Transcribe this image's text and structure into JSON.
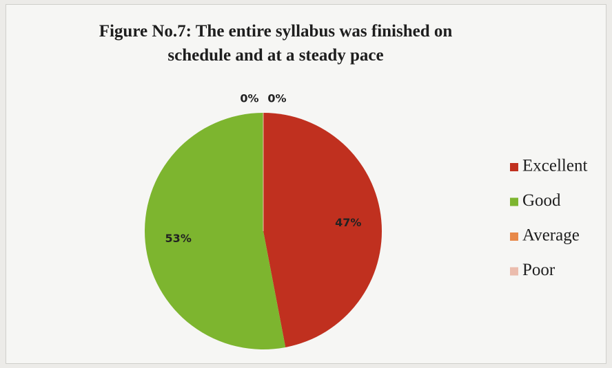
{
  "chart_data": {
    "type": "pie",
    "title": "Figure No.7: The entire syllabus was finished on schedule and at a steady pace",
    "categories": [
      "Excellent",
      "Good",
      "Average",
      "Poor"
    ],
    "values": [
      47,
      53,
      0,
      0
    ],
    "value_labels": [
      "47%",
      "53%",
      "0%",
      "0%"
    ],
    "colors": [
      "#c0301f",
      "#7db52f",
      "#e8894a",
      "#ebbcad"
    ],
    "legend": "right"
  }
}
